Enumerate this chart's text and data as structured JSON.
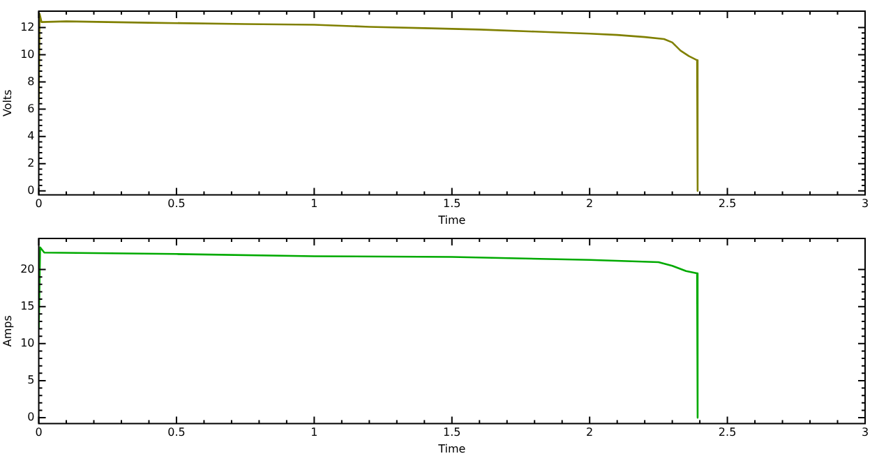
{
  "chart_data": [
    {
      "type": "line",
      "xlabel": "Time",
      "ylabel": "Volts",
      "xlim": [
        0,
        3
      ],
      "xticks": [
        0,
        0.5,
        1,
        1.5,
        2,
        2.5,
        3
      ],
      "ylim": [
        -0.3,
        13.2
      ],
      "yticks": [
        0,
        2,
        4,
        6,
        8,
        10,
        12
      ],
      "series": [
        {
          "color": "#808000",
          "x": [
            0,
            0.003,
            0.01,
            0.1,
            0.4,
            0.75,
            1.0,
            1.2,
            1.4,
            1.6,
            1.8,
            2.0,
            2.1,
            2.2,
            2.27,
            2.3,
            2.33,
            2.36,
            2.39,
            2.392
          ],
          "values": [
            6.5,
            13.0,
            12.4,
            12.45,
            12.35,
            12.25,
            12.2,
            12.05,
            11.95,
            11.85,
            11.7,
            11.55,
            11.45,
            11.3,
            11.15,
            10.9,
            10.3,
            9.9,
            9.6,
            0
          ]
        }
      ]
    },
    {
      "type": "line",
      "xlabel": "Time",
      "ylabel": "Amps",
      "xlim": [
        0,
        3
      ],
      "xticks": [
        0,
        0.5,
        1,
        1.5,
        2,
        2.5,
        3
      ],
      "ylim": [
        -0.8,
        24.2
      ],
      "yticks": [
        0,
        5,
        10,
        15,
        20
      ],
      "series": [
        {
          "color": "#00aa00",
          "x": [
            0,
            0.005,
            0.02,
            0.5,
            1.0,
            1.5,
            2.0,
            2.25,
            2.3,
            2.35,
            2.39,
            2.392
          ],
          "values": [
            12,
            23,
            22.3,
            22.1,
            21.8,
            21.7,
            21.3,
            21.0,
            20.5,
            19.8,
            19.5,
            0
          ]
        }
      ]
    }
  ]
}
